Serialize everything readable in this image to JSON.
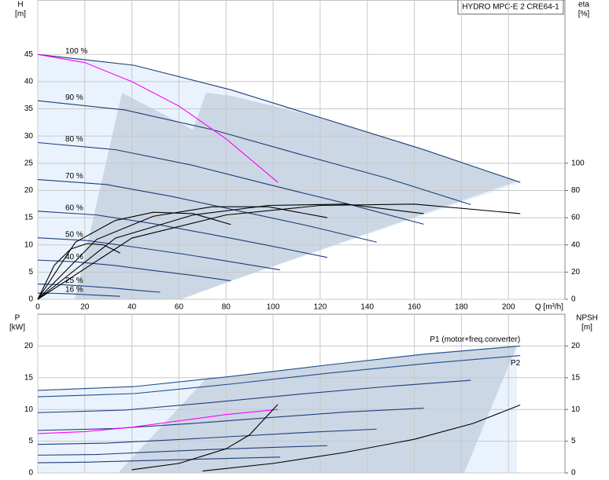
{
  "chart_data": [
    {
      "type": "line",
      "title": "HYDRO MPC-E 2 CRE64-1",
      "y_label": "H",
      "y_unit": "[m]",
      "y2_label": "eta",
      "y2_unit": "[%]",
      "x_label": "Q [m³/h]",
      "xlim": [
        0,
        224
      ],
      "xticks": [
        0,
        20,
        40,
        60,
        80,
        100,
        120,
        140,
        160,
        180,
        200
      ],
      "ylim": [
        0,
        55
      ],
      "yticks": [
        0,
        5,
        10,
        15,
        20,
        25,
        30,
        35,
        40,
        45
      ],
      "y2lim": [
        0,
        220
      ],
      "y2ticks": [
        0,
        20,
        40,
        60,
        80,
        100
      ],
      "grid": true,
      "series": [
        {
          "name": "100 %",
          "color": "#1f3d7a",
          "x": [
            0,
            41,
            82,
            123,
            164,
            205
          ],
          "values": [
            45,
            43,
            38.5,
            33,
            27.5,
            21.5
          ]
        },
        {
          "name": "90 %",
          "color": "#1f3d7a",
          "x": [
            0,
            37,
            74,
            111,
            148,
            184
          ],
          "values": [
            36.5,
            34.8,
            31.2,
            26.7,
            22.3,
            17.4
          ]
        },
        {
          "name": "80 %",
          "color": "#1f3d7a",
          "x": [
            0,
            33,
            66,
            98,
            131,
            164
          ],
          "values": [
            28.8,
            27.5,
            24.6,
            21.1,
            17.6,
            13.8
          ]
        },
        {
          "name": "70 %",
          "color": "#1f3d7a",
          "x": [
            0,
            29,
            57,
            86,
            115,
            144
          ],
          "values": [
            22,
            21.1,
            18.9,
            16.2,
            13.5,
            10.5
          ]
        },
        {
          "name": "60 %",
          "color": "#1f3d7a",
          "x": [
            0,
            25,
            49,
            74,
            98,
            123
          ],
          "values": [
            16.2,
            15.5,
            13.9,
            11.9,
            9.9,
            7.7
          ]
        },
        {
          "name": "50 %",
          "color": "#1f3d7a",
          "x": [
            0,
            21,
            41,
            62,
            82,
            103
          ],
          "values": [
            11.3,
            10.8,
            9.6,
            8.3,
            6.9,
            5.4
          ]
        },
        {
          "name": "40 %",
          "color": "#1f3d7a",
          "x": [
            0,
            16,
            33,
            49,
            66,
            82
          ],
          "values": [
            7.2,
            6.9,
            6.2,
            5.3,
            4.4,
            3.4
          ]
        },
        {
          "name": "25 %",
          "color": "#1f3d7a",
          "x": [
            0,
            10,
            21,
            31,
            41,
            52
          ],
          "values": [
            2.8,
            2.7,
            2.4,
            2.1,
            1.7,
            1.3
          ]
        },
        {
          "name": "16 %",
          "color": "#1f3d7a",
          "x": [
            0,
            7,
            14,
            21,
            28,
            35
          ],
          "values": [
            1.15,
            1.1,
            1,
            0.85,
            0.7,
            0.55
          ]
        },
        {
          "color": "#ff00ff",
          "x": [
            0,
            20,
            40,
            60,
            80,
            102
          ],
          "values": [
            45,
            43.5,
            40,
            35.5,
            29.5,
            21.5
          ]
        },
        {
          "color": "#000000",
          "axis": "y2",
          "x": [
            0,
            40,
            80,
            120,
            160,
            205
          ],
          "values": [
            0,
            45,
            62,
            69,
            70,
            63
          ]
        },
        {
          "color": "#000000",
          "axis": "y2",
          "x": [
            0,
            33,
            66,
            98,
            131,
            164
          ],
          "values": [
            0,
            45,
            62,
            69,
            70,
            63
          ]
        },
        {
          "color": "#000000",
          "axis": "y2",
          "x": [
            0,
            25,
            49,
            74,
            98,
            123
          ],
          "values": [
            0,
            44,
            61,
            68,
            68,
            60
          ]
        },
        {
          "color": "#000000",
          "axis": "y2",
          "x": [
            0,
            16,
            33,
            49,
            66,
            82
          ],
          "values": [
            0,
            42,
            58,
            64,
            63,
            55
          ]
        },
        {
          "color": "#000000",
          "axis": "y2",
          "x": [
            0,
            7,
            14,
            21,
            28,
            35
          ],
          "values": [
            0,
            25,
            37,
            41,
            40,
            34
          ]
        }
      ]
    },
    {
      "type": "line",
      "y_label": "P",
      "y_unit": "[kW]",
      "y2_label": "NPSH",
      "y2_unit": "[m]",
      "xlim": [
        0,
        224
      ],
      "xticks": [
        0,
        20,
        40,
        60,
        80,
        100,
        120,
        140,
        160,
        180,
        200
      ],
      "ylim": [
        0,
        25
      ],
      "yticks": [
        0,
        5,
        10,
        15,
        20
      ],
      "y2lim": [
        0,
        25
      ],
      "y2ticks": [
        0,
        5,
        10,
        15,
        20
      ],
      "grid": true,
      "series": [
        {
          "name": "P1 (motor+freq.converter)",
          "color": "#1f4e8c",
          "x": [
            0,
            41,
            82,
            123,
            164,
            205
          ],
          "values": [
            13,
            13.6,
            15.2,
            17,
            18.7,
            20
          ]
        },
        {
          "name": "P2",
          "color": "#1f4e8c",
          "x": [
            0,
            41,
            82,
            123,
            164,
            205
          ],
          "values": [
            12,
            12.5,
            14,
            15.7,
            17.2,
            18.5
          ]
        },
        {
          "color": "#1f3d7a",
          "x": [
            0,
            37,
            74,
            111,
            148,
            184
          ],
          "values": [
            9.5,
            9.9,
            11.1,
            12.4,
            13.6,
            14.6
          ]
        },
        {
          "color": "#1f3d7a",
          "x": [
            0,
            33,
            66,
            98,
            131,
            164
          ],
          "values": [
            6.7,
            7,
            7.8,
            8.7,
            9.6,
            10.2
          ]
        },
        {
          "color": "#1f3d7a",
          "x": [
            0,
            29,
            57,
            86,
            115,
            144
          ],
          "values": [
            4.5,
            4.7,
            5.2,
            5.8,
            6.4,
            6.9
          ]
        },
        {
          "color": "#1f3d7a",
          "x": [
            0,
            25,
            49,
            74,
            98,
            123
          ],
          "values": [
            2.8,
            2.9,
            3.3,
            3.7,
            4,
            4.3
          ]
        },
        {
          "color": "#1f3d7a",
          "x": [
            0,
            21,
            41,
            62,
            82,
            103
          ],
          "values": [
            1.6,
            1.7,
            1.9,
            2.1,
            2.3,
            2.5
          ]
        },
        {
          "color": "#ff00ff",
          "x": [
            0,
            20,
            40,
            60,
            80,
            102
          ],
          "values": [
            6.2,
            6.5,
            7.2,
            8.2,
            9.2,
            10
          ]
        },
        {
          "color": "#000000",
          "axis": "y2",
          "x": [
            70,
            100,
            130,
            160,
            185,
            205
          ],
          "values": [
            0.3,
            1.5,
            3.2,
            5.3,
            7.8,
            10.7
          ]
        },
        {
          "color": "#000000",
          "axis": "y2",
          "x": [
            40,
            60,
            80,
            90,
            102
          ],
          "values": [
            0.5,
            1.5,
            3.8,
            6,
            10.8
          ]
        }
      ]
    }
  ]
}
